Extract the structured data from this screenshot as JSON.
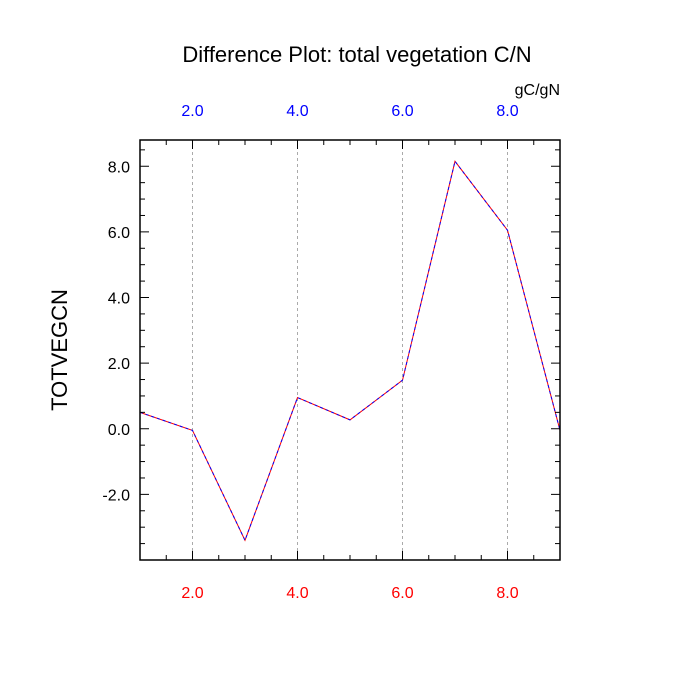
{
  "chart_data": {
    "type": "line",
    "title": "Difference Plot: total vegetation C/N",
    "units": "gC/gN",
    "ylabel": "TOTVEGCN",
    "xlim": [
      1,
      9
    ],
    "ylim": [
      -4,
      8.8
    ],
    "x": [
      1,
      2,
      3,
      4,
      5,
      6,
      7,
      8,
      9
    ],
    "series": [
      {
        "values": [
          0.5,
          -0.05,
          -3.4,
          0.95,
          0.27,
          1.48,
          8.15,
          6.05,
          -0.05
        ]
      }
    ],
    "xticks": [
      2,
      4,
      6,
      8
    ],
    "xtick_labels_bottom": [
      "2.0",
      "4.0",
      "6.0",
      "8.0"
    ],
    "xtick_labels_top": [
      "2.0",
      "4.0",
      "6.0",
      "8.0"
    ],
    "yticks": [
      8,
      6,
      4,
      2,
      0,
      -2
    ],
    "ytick_labels": [
      "8.0",
      "6.0",
      "4.0",
      "2.0",
      "0.0",
      "-2.0"
    ],
    "grid": "vertical-dashed",
    "colors": {
      "line_primary": "#ff0000",
      "line_secondary": "#0000ff",
      "bottom_tick_labels": "#ff0000",
      "top_tick_labels": "#0000ff",
      "grid": "#aaaaaa",
      "axes": "#000000"
    }
  }
}
